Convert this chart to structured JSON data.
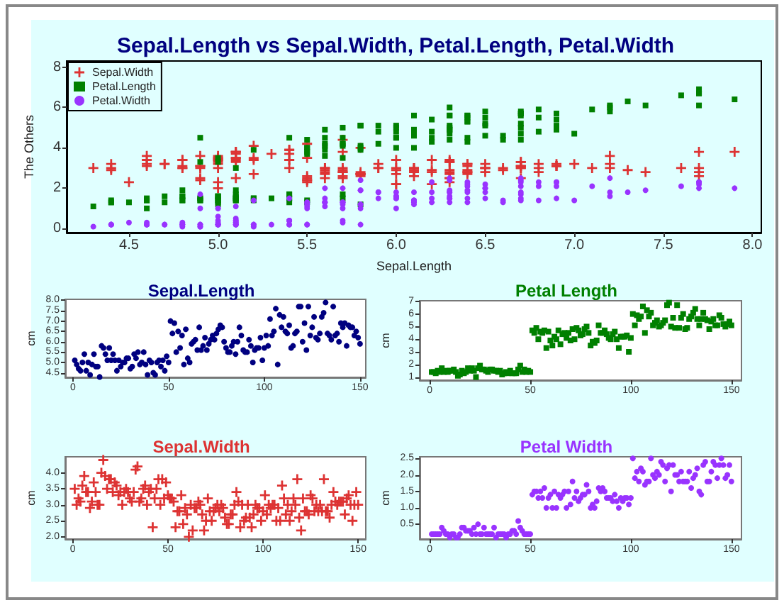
{
  "chart_data": [
    {
      "type": "scatter",
      "title": "Sepal.Length vs Sepal.Width, Petal.Length, Petal.Width",
      "xlabel": "Sepal.Length",
      "ylabel": "The Others",
      "legend": "top left",
      "grid": false,
      "xlim": [
        4.15,
        8.05
      ],
      "xticks": [
        4.5,
        {
          "value": 5,
          "label": "5.0"
        },
        5.5,
        {
          "value": 6,
          "label": "6.0"
        },
        6.5,
        {
          "value": 7,
          "label": "7.0"
        },
        7.5,
        {
          "value": 8,
          "label": "8.0"
        }
      ],
      "ylim": [
        -0.2,
        8.3
      ],
      "yticks": [
        0,
        2,
        4,
        6,
        8
      ],
      "x": [
        5.1,
        4.9,
        4.7,
        4.6,
        5.0,
        5.4,
        4.6,
        5.0,
        4.4,
        4.9,
        5.4,
        4.8,
        4.8,
        4.3,
        5.8,
        5.7,
        5.4,
        5.1,
        5.7,
        5.1,
        5.4,
        5.1,
        4.6,
        5.1,
        4.8,
        5.0,
        5.0,
        5.2,
        5.2,
        4.7,
        4.8,
        5.4,
        5.2,
        5.5,
        4.9,
        5.0,
        5.5,
        4.9,
        4.4,
        5.1,
        5.0,
        4.5,
        4.4,
        5.0,
        5.1,
        4.8,
        5.1,
        4.6,
        5.3,
        5.0,
        7.0,
        6.4,
        6.9,
        5.5,
        6.5,
        5.7,
        6.3,
        4.9,
        6.6,
        5.2,
        5.0,
        5.9,
        6.0,
        6.1,
        5.6,
        6.7,
        5.6,
        5.8,
        6.2,
        5.6,
        5.9,
        6.1,
        6.3,
        6.1,
        6.4,
        6.6,
        6.8,
        6.7,
        6.0,
        5.7,
        5.5,
        5.5,
        5.8,
        6.0,
        5.4,
        6.0,
        6.7,
        6.3,
        5.6,
        5.5,
        5.5,
        6.1,
        5.8,
        5.0,
        5.6,
        5.7,
        5.7,
        6.2,
        5.1,
        5.7,
        6.3,
        5.8,
        7.1,
        6.3,
        6.5,
        7.6,
        4.9,
        7.3,
        6.7,
        7.2,
        6.5,
        6.4,
        6.8,
        5.7,
        5.8,
        6.4,
        6.5,
        7.7,
        7.7,
        6.0,
        6.9,
        5.6,
        7.7,
        6.3,
        6.7,
        7.2,
        6.2,
        6.1,
        6.4,
        7.2,
        7.4,
        7.9,
        6.4,
        6.3,
        6.1,
        7.7,
        6.3,
        6.4,
        6.0,
        6.9,
        6.7,
        6.9,
        5.8,
        6.8,
        6.7,
        6.7,
        6.3,
        6.5,
        6.2,
        5.9
      ],
      "series": [
        {
          "name": "Sepal.Width",
          "color": "#dd3333",
          "marker": "cross",
          "values": [
            3.5,
            3.0,
            3.2,
            3.1,
            3.6,
            3.9,
            3.4,
            3.4,
            2.9,
            3.1,
            3.7,
            3.4,
            3.0,
            3.0,
            4.0,
            4.4,
            3.9,
            3.5,
            3.8,
            3.8,
            3.4,
            3.7,
            3.6,
            3.3,
            3.4,
            3.0,
            3.4,
            3.5,
            3.4,
            3.2,
            3.1,
            3.4,
            4.1,
            4.2,
            3.1,
            3.2,
            3.5,
            3.6,
            3.0,
            3.4,
            3.5,
            2.3,
            3.2,
            3.5,
            3.8,
            3.0,
            3.8,
            3.2,
            3.7,
            3.3,
            3.2,
            3.2,
            3.1,
            2.3,
            2.8,
            2.8,
            3.3,
            2.4,
            2.9,
            2.7,
            2.0,
            3.0,
            2.2,
            2.9,
            2.9,
            3.1,
            3.0,
            2.7,
            2.2,
            2.5,
            3.2,
            2.8,
            2.5,
            2.8,
            2.9,
            3.0,
            2.8,
            3.0,
            2.9,
            2.6,
            2.4,
            2.4,
            2.7,
            2.7,
            3.0,
            3.4,
            3.1,
            2.3,
            3.0,
            2.5,
            2.6,
            3.0,
            2.6,
            2.3,
            2.7,
            3.0,
            2.9,
            2.9,
            2.5,
            2.8,
            3.3,
            2.7,
            3.0,
            2.9,
            3.0,
            3.0,
            2.5,
            2.9,
            2.5,
            3.6,
            3.2,
            2.7,
            3.0,
            2.5,
            2.8,
            3.2,
            3.0,
            3.8,
            2.6,
            2.2,
            3.2,
            2.8,
            2.8,
            2.7,
            3.3,
            3.2,
            2.8,
            3.0,
            2.8,
            3.0,
            2.8,
            3.8,
            2.8,
            2.8,
            2.6,
            3.0,
            3.4,
            3.1,
            3.0,
            3.1,
            3.1,
            3.1,
            2.7,
            3.2,
            3.3,
            3.0,
            2.5,
            3.0,
            3.4,
            3.0
          ]
        },
        {
          "name": "Petal.Length",
          "color": "#008000",
          "marker": "square",
          "values": [
            1.4,
            1.4,
            1.3,
            1.5,
            1.4,
            1.7,
            1.4,
            1.5,
            1.4,
            1.5,
            1.5,
            1.6,
            1.4,
            1.1,
            1.2,
            1.5,
            1.3,
            1.4,
            1.7,
            1.5,
            1.7,
            1.5,
            1.0,
            1.7,
            1.9,
            1.6,
            1.6,
            1.5,
            1.4,
            1.6,
            1.6,
            1.5,
            1.5,
            1.4,
            1.5,
            1.2,
            1.3,
            1.4,
            1.3,
            1.5,
            1.3,
            1.3,
            1.3,
            1.6,
            1.9,
            1.4,
            1.6,
            1.4,
            1.5,
            1.4,
            4.7,
            4.5,
            4.9,
            4.0,
            4.6,
            4.5,
            4.7,
            3.3,
            4.6,
            3.9,
            3.5,
            4.2,
            4.0,
            4.7,
            3.6,
            4.4,
            4.5,
            4.1,
            4.5,
            3.9,
            4.8,
            4.0,
            4.9,
            null,
            4.3,
            4.4,
            4.8,
            5.0,
            4.5,
            3.5,
            3.8,
            3.7,
            3.9,
            5.1,
            4.5,
            4.5,
            4.7,
            4.4,
            4.1,
            4.0,
            4.4,
            4.6,
            4.0,
            3.3,
            4.2,
            4.2,
            4.2,
            4.3,
            3.0,
            4.1,
            6.0,
            5.1,
            5.9,
            5.6,
            5.8,
            6.6,
            4.5,
            6.3,
            5.8,
            6.1,
            5.1,
            5.3,
            5.5,
            5.0,
            5.1,
            5.3,
            5.5,
            6.7,
            6.9,
            5.0,
            5.7,
            4.9,
            6.7,
            4.9,
            5.7,
            6.0,
            4.8,
            4.9,
            5.6,
            5.8,
            6.1,
            6.4,
            5.6,
            5.1,
            5.6,
            6.1,
            5.6,
            5.5,
            4.8,
            5.4,
            5.6,
            5.1,
            5.1,
            5.9,
            5.7,
            5.2,
            5.0,
            5.2,
            5.4,
            5.1
          ]
        },
        {
          "name": "Petal.Width",
          "color": "#9933ff",
          "marker": "circle",
          "values": [
            0.2,
            0.2,
            0.2,
            0.2,
            0.2,
            0.4,
            0.3,
            0.2,
            0.2,
            0.1,
            0.2,
            0.2,
            0.1,
            0.1,
            0.2,
            0.4,
            0.4,
            0.3,
            0.3,
            0.3,
            0.2,
            0.4,
            0.2,
            0.5,
            0.2,
            0.2,
            0.4,
            0.2,
            0.2,
            0.2,
            0.2,
            0.4,
            0.1,
            0.2,
            0.2,
            0.2,
            0.2,
            0.1,
            0.2,
            0.2,
            0.3,
            0.3,
            0.2,
            0.6,
            0.4,
            0.3,
            0.2,
            0.2,
            0.2,
            0.2,
            1.4,
            1.5,
            1.5,
            1.3,
            1.5,
            1.3,
            1.6,
            1.0,
            1.3,
            1.4,
            1.0,
            1.5,
            1.0,
            1.4,
            1.3,
            1.4,
            1.5,
            1.0,
            1.5,
            1.1,
            1.8,
            1.3,
            1.5,
            1.2,
            1.3,
            1.4,
            1.4,
            1.7,
            1.5,
            1.0,
            1.1,
            1.0,
            1.2,
            1.6,
            1.5,
            1.6,
            1.5,
            1.3,
            1.3,
            1.3,
            1.2,
            1.4,
            1.2,
            1.0,
            1.3,
            1.2,
            1.3,
            1.3,
            1.1,
            1.3,
            2.5,
            1.9,
            2.1,
            1.8,
            2.2,
            2.1,
            1.7,
            1.8,
            1.8,
            2.5,
            2.0,
            1.9,
            2.1,
            2.0,
            2.4,
            2.3,
            1.8,
            2.2,
            2.3,
            1.5,
            2.3,
            2.0,
            2.0,
            1.8,
            2.1,
            1.8,
            1.8,
            1.8,
            2.1,
            1.6,
            1.9,
            2.0,
            2.2,
            1.5,
            1.4,
            2.3,
            2.4,
            1.8,
            1.8,
            2.1,
            2.4,
            2.3,
            1.9,
            2.3,
            2.5,
            2.3,
            1.9,
            2.0,
            2.3,
            1.8
          ]
        }
      ]
    },
    {
      "type": "scatter",
      "title": "Sepal.Length",
      "ylabel": "cm",
      "marker": "circle",
      "grid": false,
      "xlim": [
        -4,
        153
      ],
      "xticks": [
        0,
        50,
        100,
        150
      ],
      "ylim": [
        4.28,
        8.05
      ],
      "yticks": [
        4.5,
        {
          "value": 5,
          "label": "5.0"
        },
        5.5,
        {
          "value": 6,
          "label": "6.0"
        },
        6.5,
        {
          "value": 7,
          "label": "7.0"
        },
        7.5,
        {
          "value": 8,
          "label": "8.0"
        }
      ],
      "x": [
        1,
        2,
        3,
        4,
        5,
        6,
        7,
        8,
        9,
        10,
        11,
        12,
        13,
        14,
        15,
        16,
        17,
        18,
        19,
        20,
        21,
        22,
        23,
        24,
        25,
        26,
        27,
        28,
        29,
        30,
        31,
        32,
        33,
        34,
        35,
        36,
        37,
        38,
        39,
        40,
        41,
        42,
        43,
        44,
        45,
        46,
        47,
        48,
        49,
        50,
        51,
        52,
        53,
        54,
        55,
        56,
        57,
        58,
        59,
        60,
        61,
        62,
        63,
        64,
        65,
        66,
        67,
        68,
        69,
        70,
        71,
        72,
        73,
        74,
        75,
        76,
        77,
        78,
        79,
        80,
        81,
        82,
        83,
        84,
        85,
        86,
        87,
        88,
        89,
        90,
        91,
        92,
        93,
        94,
        95,
        96,
        97,
        98,
        99,
        100,
        101,
        102,
        103,
        104,
        105,
        106,
        107,
        108,
        109,
        110,
        111,
        112,
        113,
        114,
        115,
        116,
        117,
        118,
        119,
        120,
        121,
        122,
        123,
        124,
        125,
        126,
        127,
        128,
        129,
        130,
        131,
        132,
        133,
        134,
        135,
        136,
        137,
        138,
        139,
        140,
        141,
        142,
        143,
        144,
        145,
        146,
        147,
        148,
        149,
        150
      ],
      "color": "#000080",
      "values": [
        5.1,
        4.9,
        4.7,
        4.6,
        5.0,
        5.4,
        4.6,
        5.0,
        4.4,
        4.9,
        5.4,
        4.8,
        4.8,
        4.3,
        5.8,
        5.7,
        5.4,
        5.1,
        5.7,
        5.1,
        5.4,
        5.1,
        4.6,
        5.1,
        4.8,
        5.0,
        5.0,
        5.2,
        5.2,
        4.7,
        4.8,
        5.4,
        5.2,
        5.5,
        4.9,
        5.0,
        5.5,
        4.9,
        4.4,
        5.1,
        5.0,
        4.5,
        4.4,
        5.0,
        5.1,
        4.8,
        5.1,
        4.6,
        5.3,
        5.0,
        7.0,
        6.4,
        6.9,
        5.5,
        6.5,
        5.7,
        6.3,
        4.9,
        6.6,
        5.2,
        5.0,
        5.9,
        6.0,
        6.1,
        5.6,
        6.7,
        5.6,
        5.8,
        6.2,
        5.6,
        5.9,
        6.1,
        6.3,
        6.1,
        6.4,
        6.6,
        6.8,
        6.7,
        6.0,
        5.7,
        5.5,
        5.5,
        5.8,
        6.0,
        5.4,
        6.0,
        6.7,
        6.3,
        5.6,
        5.5,
        5.5,
        6.1,
        5.8,
        5.0,
        5.6,
        5.7,
        5.7,
        6.2,
        5.1,
        5.7,
        6.3,
        5.8,
        7.1,
        6.3,
        6.5,
        7.6,
        4.9,
        7.3,
        6.7,
        7.2,
        6.5,
        6.4,
        6.8,
        5.7,
        5.8,
        6.4,
        6.5,
        7.7,
        7.7,
        6.0,
        6.9,
        5.6,
        7.7,
        6.3,
        6.7,
        7.2,
        6.2,
        6.1,
        6.4,
        7.2,
        7.4,
        7.9,
        6.4,
        6.3,
        6.1,
        7.7,
        6.3,
        6.4,
        6.0,
        6.9,
        6.7,
        6.9,
        5.8,
        6.8,
        6.7,
        6.7,
        6.3,
        6.5,
        6.2,
        5.9
      ]
    },
    {
      "type": "scatter",
      "title": "Petal Length",
      "ylabel": "cm",
      "marker": "square",
      "grid": false,
      "xlim": [
        -5,
        155
      ],
      "xticks": [
        0,
        50,
        100,
        150
      ],
      "ylim": [
        0.75,
        7.05
      ],
      "yticks": [
        1,
        2,
        3,
        4,
        5,
        6,
        7
      ],
      "x": [
        1,
        2,
        3,
        4,
        5,
        6,
        7,
        8,
        9,
        10,
        11,
        12,
        13,
        14,
        15,
        16,
        17,
        18,
        19,
        20,
        21,
        22,
        23,
        24,
        25,
        26,
        27,
        28,
        29,
        30,
        31,
        32,
        33,
        34,
        35,
        36,
        37,
        38,
        39,
        40,
        41,
        42,
        43,
        44,
        45,
        46,
        47,
        48,
        49,
        50,
        51,
        52,
        53,
        54,
        55,
        56,
        57,
        58,
        59,
        60,
        61,
        62,
        63,
        64,
        65,
        66,
        67,
        68,
        69,
        70,
        71,
        72,
        73,
        74,
        75,
        76,
        77,
        78,
        79,
        80,
        81,
        82,
        83,
        84,
        85,
        86,
        87,
        88,
        89,
        90,
        91,
        92,
        93,
        94,
        95,
        96,
        97,
        98,
        99,
        100,
        101,
        102,
        103,
        104,
        105,
        106,
        107,
        108,
        109,
        110,
        111,
        112,
        113,
        114,
        115,
        116,
        117,
        118,
        119,
        120,
        121,
        122,
        123,
        124,
        125,
        126,
        127,
        128,
        129,
        130,
        131,
        132,
        133,
        134,
        135,
        136,
        137,
        138,
        139,
        140,
        141,
        142,
        143,
        144,
        145,
        146,
        147,
        148,
        149,
        150
      ],
      "color": "#008000",
      "values": [
        1.4,
        1.4,
        1.3,
        1.5,
        1.4,
        1.7,
        1.4,
        1.5,
        1.4,
        1.5,
        1.5,
        1.6,
        1.4,
        1.1,
        1.2,
        1.5,
        1.3,
        1.4,
        1.7,
        1.5,
        1.7,
        1.5,
        1.0,
        1.7,
        1.9,
        1.6,
        1.6,
        1.5,
        1.4,
        1.6,
        1.6,
        1.5,
        1.5,
        1.4,
        1.5,
        1.2,
        1.3,
        1.4,
        1.3,
        1.5,
        1.3,
        1.3,
        1.3,
        1.6,
        1.9,
        1.4,
        1.6,
        1.4,
        1.5,
        1.4,
        4.7,
        4.5,
        4.9,
        4.0,
        4.6,
        4.5,
        4.7,
        3.3,
        4.6,
        3.9,
        3.5,
        4.2,
        4.0,
        4.7,
        3.6,
        4.4,
        4.5,
        4.1,
        4.5,
        3.9,
        4.8,
        4.0,
        4.9,
        4.7,
        4.3,
        4.4,
        4.8,
        5.0,
        4.5,
        3.5,
        3.8,
        3.7,
        3.9,
        5.1,
        4.5,
        4.5,
        4.7,
        4.4,
        4.1,
        4.0,
        4.4,
        4.6,
        4.0,
        3.3,
        4.2,
        4.2,
        4.2,
        4.3,
        3.0,
        4.1,
        6.0,
        5.1,
        5.9,
        5.6,
        5.8,
        6.6,
        4.5,
        6.3,
        5.8,
        6.1,
        5.1,
        5.3,
        5.5,
        5.0,
        5.1,
        5.3,
        5.5,
        6.7,
        6.9,
        5.0,
        5.7,
        4.9,
        6.7,
        4.9,
        5.7,
        6.0,
        4.8,
        4.9,
        5.6,
        5.8,
        6.1,
        6.4,
        5.6,
        5.1,
        5.6,
        6.1,
        5.6,
        5.5,
        4.8,
        5.4,
        5.6,
        5.1,
        5.1,
        5.9,
        5.7,
        5.2,
        5.0,
        5.2,
        5.4,
        5.1
      ]
    },
    {
      "type": "scatter",
      "title": "Sepal.Width",
      "ylabel": "cm",
      "marker": "cross",
      "grid": false,
      "xlim": [
        -4,
        154
      ],
      "xticks": [
        0,
        50,
        100,
        150
      ],
      "ylim": [
        1.93,
        4.5
      ],
      "yticks": [
        {
          "value": 2,
          "label": "2.0"
        },
        2.5,
        {
          "value": 3,
          "label": "3.0"
        },
        3.5,
        {
          "value": 4,
          "label": "4.0"
        }
      ],
      "x": [
        1,
        2,
        3,
        4,
        5,
        6,
        7,
        8,
        9,
        10,
        11,
        12,
        13,
        14,
        15,
        16,
        17,
        18,
        19,
        20,
        21,
        22,
        23,
        24,
        25,
        26,
        27,
        28,
        29,
        30,
        31,
        32,
        33,
        34,
        35,
        36,
        37,
        38,
        39,
        40,
        41,
        42,
        43,
        44,
        45,
        46,
        47,
        48,
        49,
        50,
        51,
        52,
        53,
        54,
        55,
        56,
        57,
        58,
        59,
        60,
        61,
        62,
        63,
        64,
        65,
        66,
        67,
        68,
        69,
        70,
        71,
        72,
        73,
        74,
        75,
        76,
        77,
        78,
        79,
        80,
        81,
        82,
        83,
        84,
        85,
        86,
        87,
        88,
        89,
        90,
        91,
        92,
        93,
        94,
        95,
        96,
        97,
        98,
        99,
        100,
        101,
        102,
        103,
        104,
        105,
        106,
        107,
        108,
        109,
        110,
        111,
        112,
        113,
        114,
        115,
        116,
        117,
        118,
        119,
        120,
        121,
        122,
        123,
        124,
        125,
        126,
        127,
        128,
        129,
        130,
        131,
        132,
        133,
        134,
        135,
        136,
        137,
        138,
        139,
        140,
        141,
        142,
        143,
        144,
        145,
        146,
        147,
        148,
        149,
        150
      ],
      "color": "#dd3333",
      "values": [
        3.5,
        3.0,
        3.2,
        3.1,
        3.6,
        3.9,
        3.4,
        3.4,
        2.9,
        3.1,
        3.7,
        3.4,
        3.0,
        3.0,
        4.0,
        4.4,
        3.9,
        3.5,
        3.8,
        3.8,
        3.4,
        3.7,
        3.6,
        3.3,
        3.4,
        3.0,
        3.4,
        3.5,
        3.4,
        3.2,
        3.1,
        3.4,
        4.1,
        4.2,
        3.1,
        3.2,
        3.5,
        3.6,
        3.0,
        3.4,
        3.5,
        2.3,
        3.2,
        3.5,
        3.8,
        3.0,
        3.8,
        3.2,
        3.7,
        3.3,
        3.2,
        3.2,
        3.1,
        2.3,
        2.8,
        2.8,
        3.3,
        2.4,
        2.9,
        2.7,
        2.0,
        3.0,
        2.2,
        2.9,
        2.9,
        3.1,
        3.0,
        2.7,
        2.2,
        2.5,
        3.2,
        2.8,
        2.5,
        2.8,
        2.9,
        3.0,
        2.8,
        3.0,
        2.9,
        2.6,
        2.4,
        2.4,
        2.7,
        2.7,
        3.0,
        3.4,
        3.1,
        2.3,
        3.0,
        2.5,
        2.6,
        3.0,
        2.6,
        2.3,
        2.7,
        3.0,
        2.9,
        2.9,
        2.5,
        2.8,
        3.3,
        2.7,
        3.0,
        2.9,
        3.0,
        3.0,
        2.5,
        2.9,
        2.5,
        3.6,
        3.2,
        2.7,
        3.0,
        2.5,
        2.8,
        3.2,
        3.0,
        3.8,
        2.6,
        2.2,
        3.2,
        2.8,
        2.8,
        2.7,
        3.3,
        3.2,
        2.8,
        3.0,
        2.8,
        3.0,
        2.8,
        3.8,
        2.8,
        2.8,
        2.6,
        3.0,
        3.4,
        3.1,
        3.0,
        3.1,
        3.1,
        3.1,
        2.7,
        3.2,
        3.3,
        3.0,
        2.5,
        3.0,
        3.4,
        3.0
      ]
    },
    {
      "type": "scatter",
      "title": "Petal Width",
      "ylabel": "cm",
      "marker": "circle",
      "grid": false,
      "xlim": [
        -5,
        155
      ],
      "xticks": [
        0,
        50,
        100,
        150
      ],
      "ylim": [
        0.05,
        2.55
      ],
      "yticks": [
        0.5,
        {
          "value": 1,
          "label": "1.0"
        },
        1.5,
        {
          "value": 2,
          "label": "2.0"
        },
        2.5
      ],
      "x": [
        1,
        2,
        3,
        4,
        5,
        6,
        7,
        8,
        9,
        10,
        11,
        12,
        13,
        14,
        15,
        16,
        17,
        18,
        19,
        20,
        21,
        22,
        23,
        24,
        25,
        26,
        27,
        28,
        29,
        30,
        31,
        32,
        33,
        34,
        35,
        36,
        37,
        38,
        39,
        40,
        41,
        42,
        43,
        44,
        45,
        46,
        47,
        48,
        49,
        50,
        51,
        52,
        53,
        54,
        55,
        56,
        57,
        58,
        59,
        60,
        61,
        62,
        63,
        64,
        65,
        66,
        67,
        68,
        69,
        70,
        71,
        72,
        73,
        74,
        75,
        76,
        77,
        78,
        79,
        80,
        81,
        82,
        83,
        84,
        85,
        86,
        87,
        88,
        89,
        90,
        91,
        92,
        93,
        94,
        95,
        96,
        97,
        98,
        99,
        100,
        101,
        102,
        103,
        104,
        105,
        106,
        107,
        108,
        109,
        110,
        111,
        112,
        113,
        114,
        115,
        116,
        117,
        118,
        119,
        120,
        121,
        122,
        123,
        124,
        125,
        126,
        127,
        128,
        129,
        130,
        131,
        132,
        133,
        134,
        135,
        136,
        137,
        138,
        139,
        140,
        141,
        142,
        143,
        144,
        145,
        146,
        147,
        148,
        149,
        150
      ],
      "color": "#9933ff",
      "values": [
        0.2,
        0.2,
        0.2,
        0.2,
        0.2,
        0.4,
        0.3,
        0.2,
        0.2,
        0.1,
        0.2,
        0.2,
        0.1,
        0.1,
        0.2,
        0.4,
        0.4,
        0.3,
        0.3,
        0.3,
        0.2,
        0.4,
        0.2,
        0.5,
        0.2,
        0.2,
        0.4,
        0.2,
        0.2,
        0.2,
        0.2,
        0.4,
        0.1,
        0.2,
        0.2,
        0.2,
        0.2,
        0.1,
        0.2,
        0.2,
        0.3,
        0.3,
        0.2,
        0.6,
        0.4,
        0.3,
        0.2,
        0.2,
        0.2,
        0.2,
        1.4,
        1.5,
        1.5,
        1.3,
        1.5,
        1.3,
        1.6,
        1.0,
        1.3,
        1.4,
        1.0,
        1.5,
        1.0,
        1.4,
        1.3,
        1.4,
        1.5,
        1.0,
        1.5,
        1.1,
        1.8,
        1.3,
        1.5,
        1.2,
        1.3,
        1.4,
        1.4,
        1.7,
        1.5,
        1.0,
        1.1,
        1.0,
        1.2,
        1.6,
        1.5,
        1.6,
        1.5,
        1.3,
        1.3,
        1.3,
        1.2,
        1.4,
        1.2,
        1.0,
        1.3,
        1.2,
        1.3,
        1.3,
        1.1,
        1.3,
        2.5,
        1.9,
        2.1,
        1.8,
        2.2,
        2.1,
        1.7,
        1.8,
        1.8,
        2.5,
        2.0,
        1.9,
        2.1,
        2.0,
        2.4,
        2.3,
        1.8,
        2.2,
        2.3,
        1.5,
        2.3,
        2.0,
        2.0,
        1.8,
        2.1,
        1.8,
        1.8,
        1.8,
        2.1,
        1.6,
        1.9,
        2.0,
        2.2,
        1.5,
        1.4,
        2.3,
        2.4,
        1.8,
        1.8,
        2.1,
        2.4,
        2.3,
        1.9,
        2.3,
        2.5,
        2.3,
        1.9,
        2.0,
        2.3,
        1.8
      ]
    }
  ]
}
